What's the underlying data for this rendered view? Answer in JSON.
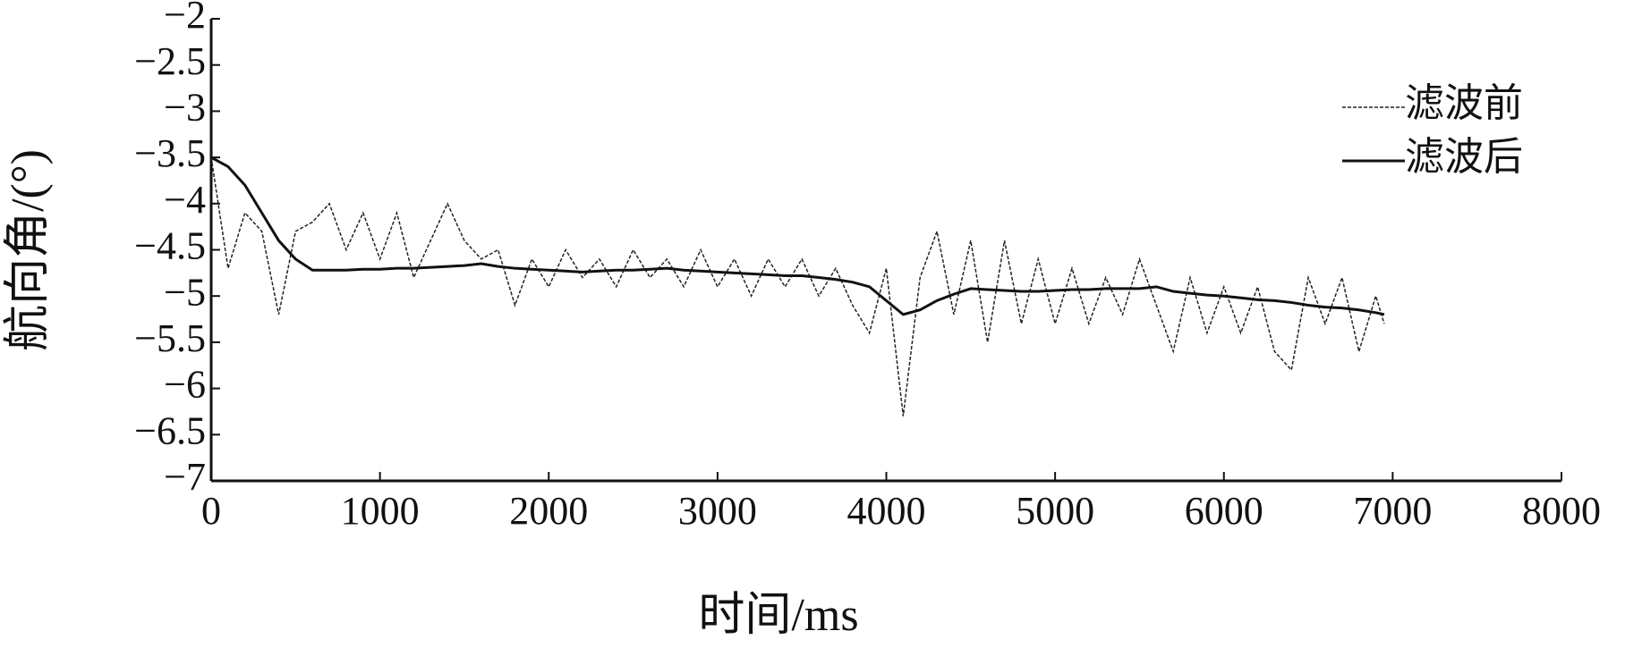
{
  "chart_data": {
    "type": "line",
    "y_label": "航向角/(°)",
    "x_label": "时间/ms",
    "x": [
      0,
      100,
      200,
      300,
      400,
      500,
      600,
      700,
      800,
      900,
      1000,
      1100,
      1200,
      1300,
      1400,
      1500,
      1600,
      1700,
      1800,
      1900,
      2000,
      2100,
      2200,
      2300,
      2400,
      2500,
      2600,
      2700,
      2800,
      2900,
      3000,
      3100,
      3200,
      3300,
      3400,
      3500,
      3600,
      3700,
      3800,
      3900,
      4000,
      4100,
      4200,
      4300,
      4400,
      4500,
      4600,
      4700,
      4800,
      4900,
      5000,
      5100,
      5200,
      5300,
      5400,
      5500,
      5600,
      5700,
      5800,
      5900,
      6000,
      6100,
      6200,
      6300,
      6400,
      6500,
      6600,
      6700,
      6800,
      6900,
      6950
    ],
    "series": [
      {
        "name": "滤波前",
        "color": "#222222",
        "dash": true,
        "values": [
          -3.5,
          -4.7,
          -4.1,
          -4.3,
          -5.2,
          -4.3,
          -4.2,
          -4.0,
          -4.5,
          -4.1,
          -4.6,
          -4.1,
          -4.8,
          -4.4,
          -4.0,
          -4.4,
          -4.6,
          -4.5,
          -5.1,
          -4.6,
          -4.9,
          -4.5,
          -4.8,
          -4.6,
          -4.9,
          -4.5,
          -4.8,
          -4.6,
          -4.9,
          -4.5,
          -4.9,
          -4.6,
          -5.0,
          -4.6,
          -4.9,
          -4.6,
          -5.0,
          -4.7,
          -5.1,
          -5.4,
          -4.7,
          -6.3,
          -4.8,
          -4.3,
          -5.2,
          -4.4,
          -5.5,
          -4.4,
          -5.3,
          -4.6,
          -5.3,
          -4.7,
          -5.3,
          -4.8,
          -5.2,
          -4.6,
          -5.1,
          -5.6,
          -4.8,
          -5.4,
          -4.9,
          -5.4,
          -4.9,
          -5.6,
          -5.8,
          -4.8,
          -5.3,
          -4.8,
          -5.6,
          -5.0,
          -5.3
        ]
      },
      {
        "name": "滤波后",
        "color": "#111111",
        "dash": false,
        "values": [
          -3.5,
          -3.6,
          -3.8,
          -4.1,
          -4.4,
          -4.6,
          -4.72,
          -4.72,
          -4.72,
          -4.71,
          -4.71,
          -4.7,
          -4.7,
          -4.69,
          -4.68,
          -4.67,
          -4.65,
          -4.68,
          -4.7,
          -4.71,
          -4.72,
          -4.73,
          -4.74,
          -4.73,
          -4.72,
          -4.72,
          -4.71,
          -4.7,
          -4.72,
          -4.73,
          -4.74,
          -4.75,
          -4.76,
          -4.77,
          -4.78,
          -4.78,
          -4.8,
          -4.82,
          -4.85,
          -4.9,
          -5.05,
          -5.2,
          -5.15,
          -5.05,
          -4.98,
          -4.92,
          -4.93,
          -4.94,
          -4.95,
          -4.95,
          -4.94,
          -4.93,
          -4.93,
          -4.92,
          -4.92,
          -4.92,
          -4.9,
          -4.95,
          -4.97,
          -4.99,
          -5.0,
          -5.02,
          -5.04,
          -5.05,
          -5.07,
          -5.1,
          -5.12,
          -5.13,
          -5.15,
          -5.18,
          -5.2
        ]
      }
    ],
    "xlim": [
      0,
      8000
    ],
    "xticks": [
      0,
      1000,
      2000,
      3000,
      4000,
      5000,
      6000,
      7000,
      8000
    ],
    "ylim": [
      -7,
      -2
    ],
    "yticks": [
      {
        "value": -2,
        "label": "−2"
      },
      {
        "value": -2.5,
        "label": "−2.5"
      },
      {
        "value": -3,
        "label": "−3"
      },
      {
        "value": -3.5,
        "label": "−3.5"
      },
      {
        "value": -4,
        "label": "−4"
      },
      {
        "value": -4.5,
        "label": "−4.5"
      },
      {
        "value": -5,
        "label": "−5"
      },
      {
        "value": -5.5,
        "label": "−5.5"
      },
      {
        "value": -6,
        "label": "−6"
      },
      {
        "value": -6.5,
        "label": "−6.5"
      },
      {
        "value": -7,
        "label": "−7"
      }
    ],
    "legend": "upper right"
  }
}
